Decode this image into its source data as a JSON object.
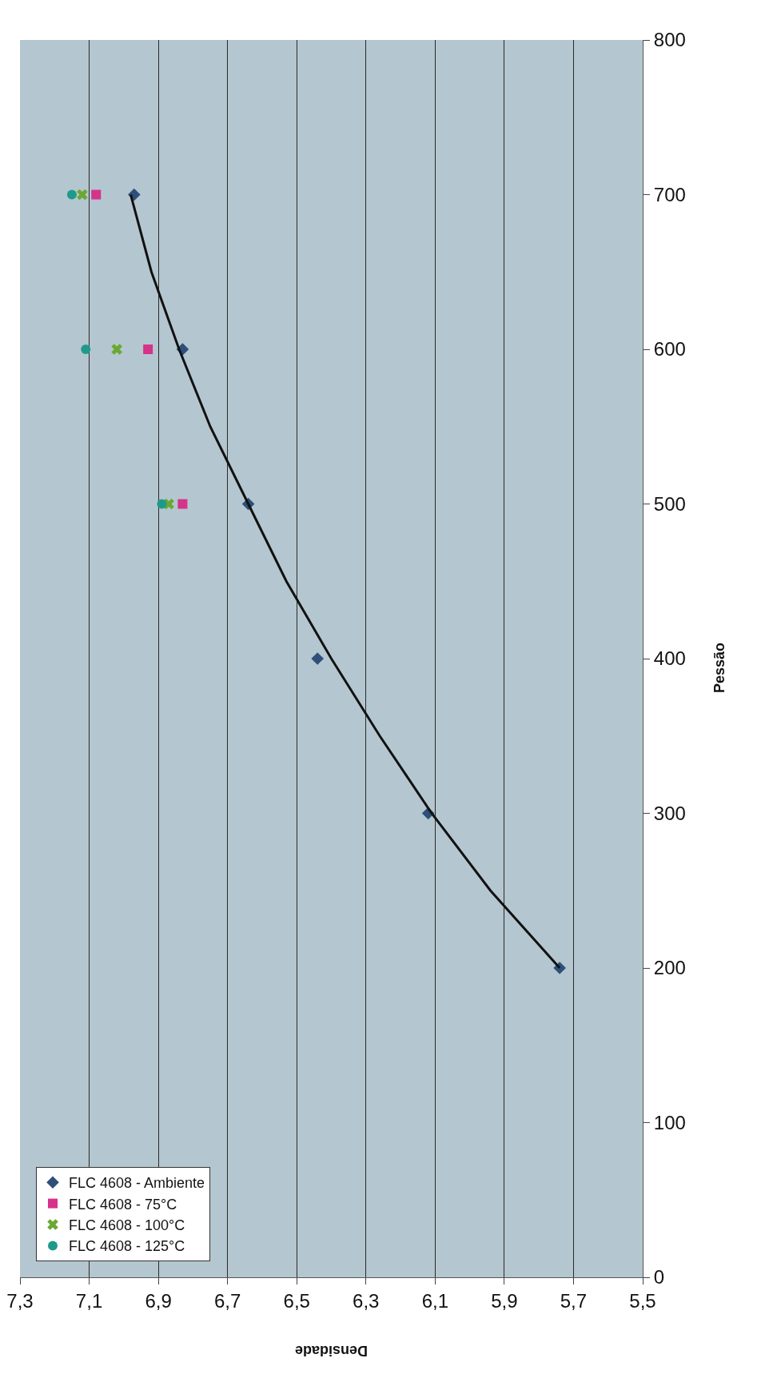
{
  "chart_data": {
    "type": "scatter",
    "xlabel": "Densidade",
    "ylabel": "Pessão",
    "xlim": [
      7.3,
      5.5
    ],
    "xticks": [
      {
        "value": 7.3,
        "label": "7,3"
      },
      {
        "value": 7.1,
        "label": "7,1"
      },
      {
        "value": 6.9,
        "label": "6,9"
      },
      {
        "value": 6.7,
        "label": "6,7"
      },
      {
        "value": 6.5,
        "label": "6,5"
      },
      {
        "value": 6.3,
        "label": "6,3"
      },
      {
        "value": 6.1,
        "label": "6,1"
      },
      {
        "value": 5.9,
        "label": "5,9"
      },
      {
        "value": 5.7,
        "label": "5,7"
      },
      {
        "value": 5.5,
        "label": "5,5"
      }
    ],
    "ylim": [
      0,
      800
    ],
    "yticks": [
      0,
      100,
      200,
      300,
      400,
      500,
      600,
      700,
      800
    ],
    "grid": "x",
    "legend": "bottom left",
    "series": [
      {
        "name": "FLC 4608 - Ambiente",
        "color": "#2e4f7a",
        "marker": "diamond",
        "x": [
          5.74,
          6.12,
          6.44,
          6.64,
          6.83,
          6.97
        ],
        "values": [
          200,
          300,
          400,
          500,
          600,
          700
        ]
      },
      {
        "name": "FLC 4608 - 75°C",
        "color": "#d6338a",
        "marker": "square",
        "x": [
          6.83,
          6.93,
          7.08
        ],
        "values": [
          500,
          600,
          700
        ]
      },
      {
        "name": "FLC 4608 - 100°C",
        "color": "#6aa832",
        "marker": "cross",
        "x": [
          6.87,
          7.02,
          7.12
        ],
        "values": [
          500,
          600,
          700
        ]
      },
      {
        "name": "FLC 4608 - 125°C",
        "color": "#1f9a8a",
        "marker": "circle",
        "x": [
          6.89,
          7.11,
          7.15
        ],
        "values": [
          500,
          600,
          700
        ]
      },
      {
        "type": "line",
        "color": "#111111",
        "marker": "none",
        "x": [
          5.74,
          5.94,
          6.11,
          6.26,
          6.4,
          6.53,
          6.64,
          6.75,
          6.84,
          6.92,
          6.98
        ],
        "values": [
          200,
          250,
          300,
          350,
          400,
          450,
          500,
          550,
          600,
          650,
          700
        ]
      }
    ]
  }
}
